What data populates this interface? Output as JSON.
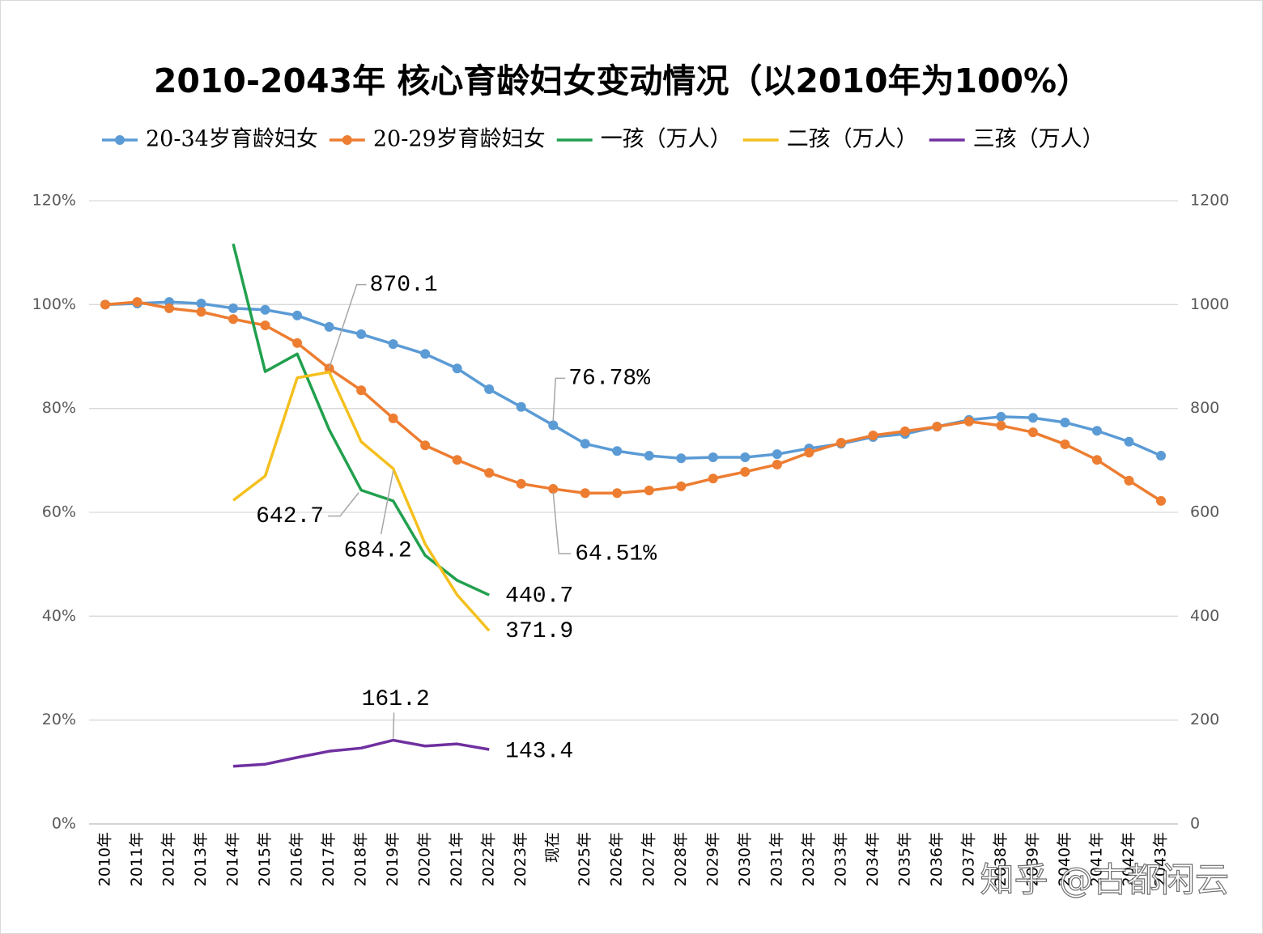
{
  "chart_data": {
    "type": "line",
    "title": "2010-2043年 核心育龄妇女变动情况（以2010年为100%）",
    "categories": [
      "2010年",
      "2011年",
      "2012年",
      "2013年",
      "2014年",
      "2015年",
      "2016年",
      "2017年",
      "2018年",
      "2019年",
      "2020年",
      "2021年",
      "2022年",
      "2023年",
      "现在",
      "2025年",
      "2026年",
      "2027年",
      "2028年",
      "2029年",
      "2030年",
      "2031年",
      "2032年",
      "2033年",
      "2034年",
      "2035年",
      "2036年",
      "2037年",
      "2038年",
      "2039年",
      "2040年",
      "2041年",
      "2042年",
      "2043年"
    ],
    "ylim": [
      0,
      120
    ],
    "yticks": [
      {
        "value": 0,
        "label": "0%"
      },
      {
        "value": 20,
        "label": "20%"
      },
      {
        "value": 40,
        "label": "40%"
      },
      {
        "value": 60,
        "label": "60%"
      },
      {
        "value": 80,
        "label": "80%"
      },
      {
        "value": 100,
        "label": "100%"
      },
      {
        "value": 120,
        "label": "120%"
      }
    ],
    "y2lim": [
      0,
      1200
    ],
    "y2ticks": [
      0,
      200,
      400,
      600,
      800,
      1000,
      1200
    ],
    "grid": true,
    "legend": "top",
    "series": [
      {
        "name": "20-34岁育龄妇女",
        "color": "#5b9bd5",
        "markers": true,
        "values": [
          100,
          100.2,
          100.5,
          100.2,
          99.3,
          99.0,
          97.9,
          95.7,
          94.3,
          92.4,
          90.5,
          87.7,
          83.7,
          80.3,
          76.78,
          73.2,
          71.8,
          70.9,
          70.4,
          70.6,
          70.6,
          71.2,
          72.3,
          73.2,
          74.5,
          75.1,
          76.5,
          77.8,
          78.4,
          78.2,
          77.3,
          75.7,
          73.6,
          70.9
        ],
        "value_labels": [
          null,
          null,
          null,
          null,
          null,
          null,
          null,
          null,
          null,
          null,
          null,
          null,
          null,
          null,
          "76.78%",
          null,
          null,
          null,
          null,
          null,
          null,
          null,
          null,
          null,
          null,
          null,
          null,
          null,
          null,
          null,
          null,
          null,
          null,
          null
        ]
      },
      {
        "name": "20-29岁育龄妇女",
        "color": "#ed7d31",
        "markers": true,
        "values": [
          100,
          100.5,
          99.3,
          98.6,
          97.2,
          96.0,
          92.6,
          87.7,
          83.5,
          78.1,
          72.9,
          70.1,
          67.6,
          65.5,
          64.51,
          63.7,
          63.7,
          64.2,
          65.0,
          66.5,
          67.8,
          69.2,
          71.5,
          73.4,
          74.8,
          75.6,
          76.5,
          77.5,
          76.7,
          75.4,
          73.1,
          70.1,
          66.1,
          62.2
        ],
        "value_labels": [
          null,
          null,
          null,
          null,
          null,
          null,
          null,
          null,
          null,
          null,
          null,
          null,
          null,
          null,
          "64.51%",
          null,
          null,
          null,
          null,
          null,
          null,
          null,
          null,
          null,
          null,
          null,
          null,
          null,
          null,
          null,
          null,
          null,
          null,
          null
        ]
      },
      {
        "name": "一孩（万人）",
        "color": "#21a04e",
        "axis": "y2",
        "values": [
          null,
          null,
          null,
          null,
          1117,
          871,
          905,
          759,
          642.7,
          622,
          517,
          469,
          440.7,
          null,
          null,
          null,
          null,
          null,
          null,
          null,
          null,
          null,
          null,
          null,
          null,
          null,
          null,
          null,
          null,
          null,
          null,
          null,
          null,
          null
        ],
        "value_labels": [
          null,
          null,
          null,
          null,
          null,
          null,
          null,
          null,
          "642.7",
          null,
          null,
          null,
          "440.7",
          null,
          null,
          null,
          null,
          null,
          null,
          null,
          null,
          null,
          null,
          null,
          null,
          null,
          null,
          null,
          null,
          null,
          null,
          null,
          null,
          null
        ]
      },
      {
        "name": "二孩（万人）",
        "color": "#f4c01e",
        "axis": "y2",
        "values": [
          null,
          null,
          null,
          null,
          623,
          670,
          859,
          870.1,
          736,
          684.2,
          539,
          441,
          371.9,
          null,
          null,
          null,
          null,
          null,
          null,
          null,
          null,
          null,
          null,
          null,
          null,
          null,
          null,
          null,
          null,
          null,
          null,
          null,
          null,
          null
        ],
        "value_labels": [
          null,
          null,
          null,
          null,
          null,
          null,
          null,
          "870.1",
          null,
          "684.2",
          null,
          null,
          "371.9",
          null,
          null,
          null,
          null,
          null,
          null,
          null,
          null,
          null,
          null,
          null,
          null,
          null,
          null,
          null,
          null,
          null,
          null,
          null,
          null,
          null
        ]
      },
      {
        "name": "三孩（万人）",
        "color": "#7030a0",
        "axis": "y2",
        "values": [
          null,
          null,
          null,
          null,
          111,
          115,
          128,
          140,
          146,
          161.2,
          150,
          154,
          143.4,
          null,
          null,
          null,
          null,
          null,
          null,
          null,
          null,
          null,
          null,
          null,
          null,
          null,
          null,
          null,
          null,
          null,
          null,
          null,
          null,
          null
        ],
        "value_labels": [
          null,
          null,
          null,
          null,
          null,
          null,
          null,
          null,
          null,
          "161.2",
          null,
          null,
          "143.4",
          null,
          null,
          null,
          null,
          null,
          null,
          null,
          null,
          null,
          null,
          null,
          null,
          null,
          null,
          null,
          null,
          null,
          null,
          null,
          null,
          null
        ]
      }
    ],
    "watermark": "知乎 @古都闲云"
  }
}
